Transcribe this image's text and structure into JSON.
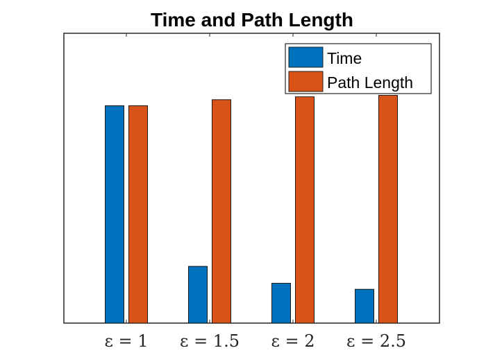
{
  "chart_data": {
    "type": "bar",
    "title": "Time and Path Length",
    "categories": [
      "ε = 1",
      "ε = 1.5",
      "ε = 2",
      "ε = 2.5"
    ],
    "series": [
      {
        "name": "Time",
        "color": "#0072BD",
        "values": [
          0.9,
          0.235,
          0.165,
          0.14
        ]
      },
      {
        "name": "Path Length",
        "color": "#D95319",
        "values": [
          0.9,
          0.925,
          0.937,
          0.943
        ]
      }
    ],
    "xlabel": "",
    "ylabel": "",
    "ylim": [
      0,
      1.2
    ],
    "grid": false,
    "legend_position": "top-right",
    "show_y_ticks": false
  }
}
